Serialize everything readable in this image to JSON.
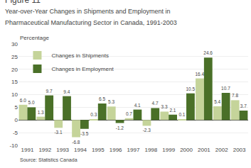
{
  "chart_data": {
    "type": "bar",
    "title": "Figure 11",
    "subtitle": [
      "Year-over-Year Changes in Shipments and Employment in",
      "Pharmaceutical Manufacturing Sector in Canada, 1991-2003"
    ],
    "ylabel": "Percentage",
    "annotations": [
      "Source: Statistics Canada"
    ],
    "categories": [
      "1991",
      "1992",
      "1993",
      "1994",
      "1995",
      "1996",
      "1997",
      "1998",
      "1999",
      "2000",
      "2001",
      "2002",
      "2003"
    ],
    "series": [
      {
        "name": "Changes in Shipments",
        "color": "#c5d49a",
        "values": [
          6.0,
          1.3,
          -3.1,
          -6.8,
          0.3,
          5.3,
          0.7,
          -2.3,
          3.3,
          0.1,
          16.4,
          5.4,
          7.8
        ],
        "value_labels": [
          "6.0",
          "1.3",
          "-3.1",
          "-6.8",
          "0.3",
          "5.3",
          "0.7",
          "-2.3",
          "3.3",
          "0.1",
          "16.4",
          "5.4",
          "7.8"
        ]
      },
      {
        "name": "Changes in Employment",
        "color": "#4a7028",
        "values": [
          5.0,
          9.7,
          9.4,
          -3.5,
          6.5,
          -1.2,
          4.1,
          4.7,
          2.1,
          10.5,
          24.6,
          10.7,
          3.7
        ],
        "value_labels": [
          "5.0",
          "9.7",
          "9.4",
          "-3.5",
          "6.5",
          "-1.2",
          "4.1",
          "4.7",
          "2.1",
          "10.5",
          "24.6",
          "10.7",
          "3.7"
        ]
      }
    ],
    "ylim": [
      -10,
      30
    ],
    "yticks": [
      -10,
      -5,
      0,
      5,
      10,
      15,
      20,
      25,
      30
    ],
    "grid": true,
    "legend": "upper left",
    "data_labels": true
  }
}
